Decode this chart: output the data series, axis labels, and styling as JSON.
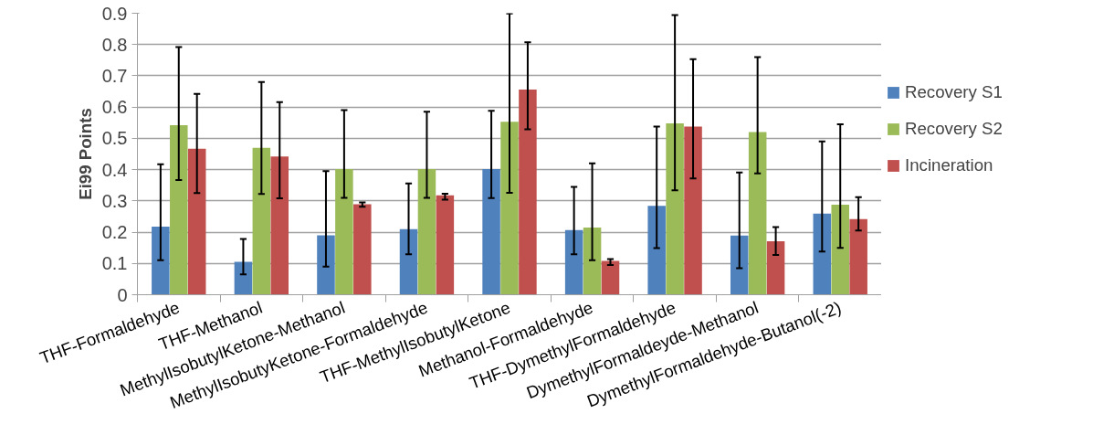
{
  "chart_data": {
    "type": "bar",
    "ylabel": "Ei99 Points",
    "categories": [
      "THF-Formaldehyde",
      "THF-Methanol",
      "MethylIsobutylKetone-Methanol",
      "MethylIsobutyKetone-Formaldehyde",
      "THF-MethylIsobutylKetone",
      "Methanol-Formaldehyde",
      "THF-DymethylFormaldehyde",
      "DymethylFormaldeyde-Methanol",
      "DymethylFormaldehyde-Butanol(-2)"
    ],
    "series": [
      {
        "name": "Recovery S1",
        "color": "#4f81bd",
        "values": [
          0.218,
          0.105,
          0.19,
          0.21,
          0.402,
          0.207,
          0.284,
          0.189,
          0.259
        ],
        "errors": [
          [
            0.11,
            0.417
          ],
          [
            0.065,
            0.178
          ],
          [
            0.09,
            0.395
          ],
          [
            0.129,
            0.356
          ],
          [
            0.309,
            0.588
          ],
          [
            0.129,
            0.345
          ],
          [
            0.149,
            0.538
          ],
          [
            0.085,
            0.391
          ],
          [
            0.138,
            0.49
          ]
        ]
      },
      {
        "name": "Recovery S2",
        "color": "#9bbb59",
        "values": [
          0.542,
          0.47,
          0.402,
          0.402,
          0.553,
          0.215,
          0.548,
          0.52,
          0.288
        ],
        "errors": [
          [
            0.367,
            0.792
          ],
          [
            0.322,
            0.68
          ],
          [
            0.31,
            0.59
          ],
          [
            0.31,
            0.585
          ],
          [
            0.326,
            0.899
          ],
          [
            0.11,
            0.42
          ],
          [
            0.334,
            0.894
          ],
          [
            0.388,
            0.76
          ],
          [
            0.15,
            0.545
          ]
        ]
      },
      {
        "name": "Incineration",
        "color": "#c0504d",
        "values": [
          0.467,
          0.442,
          0.289,
          0.318,
          0.656,
          0.108,
          0.538,
          0.171,
          0.242
        ],
        "errors": [
          [
            0.325,
            0.642
          ],
          [
            0.308,
            0.616
          ],
          [
            0.281,
            0.295
          ],
          [
            0.304,
            0.323
          ],
          [
            0.529,
            0.807
          ],
          [
            0.095,
            0.114
          ],
          [
            0.372,
            0.753
          ],
          [
            0.127,
            0.216
          ],
          [
            0.205,
            0.312
          ]
        ]
      }
    ],
    "ylim": [
      0,
      0.9
    ],
    "yticks": [
      0,
      0.1,
      0.2,
      0.3,
      0.4,
      0.5,
      0.6,
      0.7,
      0.8,
      0.9
    ],
    "grid": "y",
    "legend": "right"
  }
}
